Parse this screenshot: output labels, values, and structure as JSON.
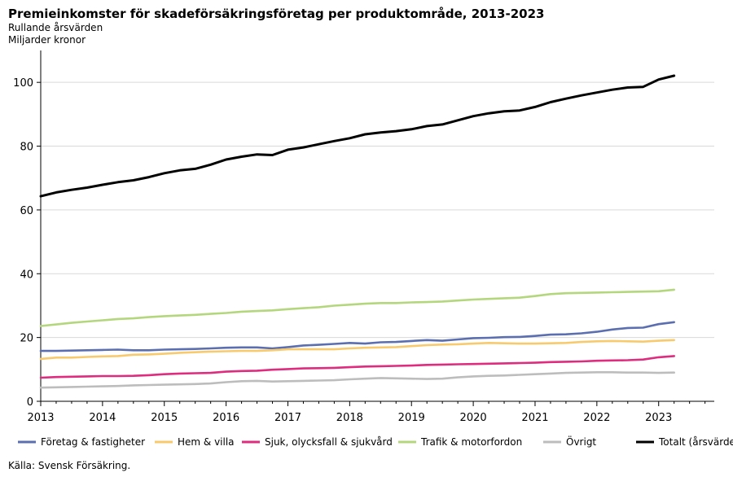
{
  "title": "Premieinkomster för skadeförsäkringsföretag per produktområde, 2013-2023",
  "subtitle1": "Rullande årsvärden",
  "subtitle2": "Miljarder kronor",
  "source": "Källa: Svensk Försäkring.",
  "chart_data": {
    "type": "line",
    "title": "Premieinkomster för skadeförsäkringsföretag per produktområde, 2013-2023",
    "subtitle": "Rullande årsvärden",
    "ylabel": "Miljarder kronor",
    "xlabel": "",
    "xlim": [
      2013,
      2023.9
    ],
    "ylim": [
      0,
      110
    ],
    "x_ticks": [
      2013,
      2014,
      2015,
      2016,
      2017,
      2018,
      2019,
      2020,
      2021,
      2022,
      2023
    ],
    "y_ticks": [
      0,
      20,
      40,
      60,
      80,
      100
    ],
    "grid": "horizontal",
    "legend_position": "bottom",
    "x": [
      2013.0,
      2013.25,
      2013.5,
      2013.75,
      2014.0,
      2014.25,
      2014.5,
      2014.75,
      2015.0,
      2015.25,
      2015.5,
      2015.75,
      2016.0,
      2016.25,
      2016.5,
      2016.75,
      2017.0,
      2017.25,
      2017.5,
      2017.75,
      2018.0,
      2018.25,
      2018.5,
      2018.75,
      2019.0,
      2019.25,
      2019.5,
      2019.75,
      2020.0,
      2020.25,
      2020.5,
      2020.75,
      2021.0,
      2021.25,
      2021.5,
      2021.75,
      2022.0,
      2022.25,
      2022.5,
      2022.75,
      2023.0,
      2023.25
    ],
    "series": [
      {
        "name": "Företag & fastigheter",
        "color": "#5b6fb0",
        "values": [
          15.8,
          15.8,
          15.9,
          16.0,
          16.1,
          16.2,
          16.0,
          16.0,
          16.2,
          16.3,
          16.4,
          16.6,
          16.8,
          16.9,
          16.9,
          16.6,
          17.0,
          17.5,
          17.7,
          18.0,
          18.3,
          18.1,
          18.5,
          18.6,
          18.9,
          19.2,
          19.0,
          19.4,
          19.8,
          19.9,
          20.1,
          20.2,
          20.5,
          20.9,
          21.0,
          21.3,
          21.8,
          22.5,
          23.0,
          23.1,
          24.2,
          24.8
        ]
      },
      {
        "name": "Hem & villa",
        "color": "#f8ca6e",
        "values": [
          13.3,
          13.7,
          13.7,
          13.9,
          14.1,
          14.2,
          14.6,
          14.7,
          14.9,
          15.2,
          15.4,
          15.6,
          15.7,
          15.8,
          15.8,
          16.0,
          16.3,
          16.3,
          16.3,
          16.3,
          16.6,
          16.8,
          16.9,
          17.0,
          17.3,
          17.6,
          17.8,
          17.9,
          18.1,
          18.3,
          18.2,
          18.1,
          18.1,
          18.2,
          18.3,
          18.6,
          18.8,
          18.9,
          18.8,
          18.7,
          19.0,
          19.2
        ]
      },
      {
        "name": "Sjuk, olycksfall & sjukvård",
        "color": "#de2c7e",
        "values": [
          7.4,
          7.6,
          7.7,
          7.8,
          7.9,
          7.9,
          8.0,
          8.2,
          8.5,
          8.7,
          8.8,
          8.9,
          9.3,
          9.5,
          9.6,
          9.9,
          10.1,
          10.3,
          10.4,
          10.5,
          10.7,
          10.9,
          11.0,
          11.1,
          11.2,
          11.4,
          11.5,
          11.6,
          11.7,
          11.8,
          11.9,
          12.0,
          12.1,
          12.3,
          12.4,
          12.5,
          12.7,
          12.8,
          12.9,
          13.1,
          13.8,
          14.2
        ]
      },
      {
        "name": "Trafik & motorfordon",
        "color": "#b4d77d",
        "values": [
          23.6,
          24.1,
          24.6,
          25.0,
          25.4,
          25.8,
          26.0,
          26.4,
          26.7,
          26.9,
          27.1,
          27.4,
          27.7,
          28.1,
          28.3,
          28.5,
          28.9,
          29.2,
          29.5,
          30.0,
          30.3,
          30.6,
          30.8,
          30.8,
          31.0,
          31.1,
          31.3,
          31.6,
          31.9,
          32.1,
          32.3,
          32.5,
          33.0,
          33.6,
          33.9,
          34.0,
          34.1,
          34.2,
          34.3,
          34.4,
          34.5,
          35.0
        ]
      },
      {
        "name": "Övrigt",
        "color": "#bdbdbd",
        "values": [
          4.3,
          4.4,
          4.5,
          4.6,
          4.7,
          4.8,
          5.0,
          5.1,
          5.2,
          5.3,
          5.4,
          5.6,
          6.0,
          6.3,
          6.4,
          6.2,
          6.3,
          6.4,
          6.5,
          6.6,
          6.9,
          7.1,
          7.3,
          7.2,
          7.1,
          7.0,
          7.1,
          7.5,
          7.8,
          8.0,
          8.1,
          8.3,
          8.5,
          8.7,
          8.9,
          9.0,
          9.1,
          9.1,
          9.0,
          9.0,
          8.9,
          9.0
        ]
      },
      {
        "name": "Totalt (årsvärden)",
        "color": "#000000",
        "values": [
          64.3,
          65.5,
          66.3,
          67.0,
          67.9,
          68.7,
          69.3,
          70.3,
          71.5,
          72.4,
          72.9,
          74.2,
          75.8,
          76.7,
          77.4,
          77.2,
          78.9,
          79.6,
          80.6,
          81.6,
          82.5,
          83.7,
          84.3,
          84.7,
          85.3,
          86.3,
          86.8,
          88.1,
          89.4,
          90.3,
          90.9,
          91.2,
          92.3,
          93.8,
          94.9,
          95.9,
          96.8,
          97.7,
          98.4,
          98.6,
          100.9,
          102.1
        ]
      }
    ]
  }
}
